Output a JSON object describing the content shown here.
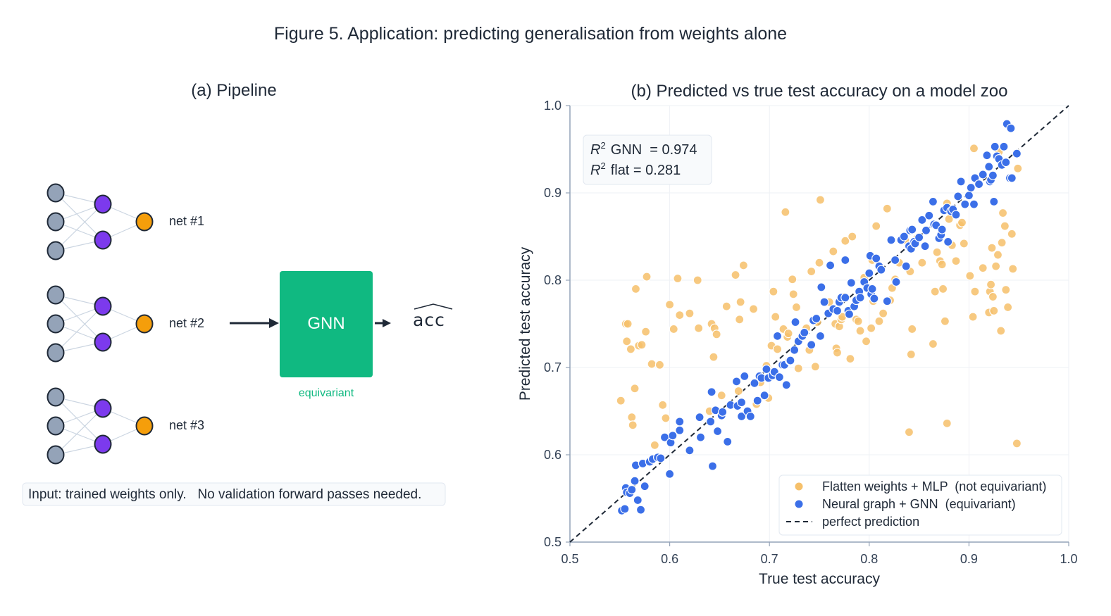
{
  "suptitle": "Figure 5. Application: predicting generalisation from weights alone",
  "panel_a": {
    "title": "(a) Pipeline",
    "nets": [
      "net #1",
      "net #2",
      "net #3"
    ],
    "gnn_label": "GNN",
    "gnn_caption": "equivariant",
    "output_label": "acc",
    "footnote": "Input: trained weights only.   No validation forward passes needed.",
    "colors": {
      "input_node": "#94a3b8",
      "hidden_node": "#7c3aed",
      "output_node": "#f59e0b",
      "gnn_box": "#10b981",
      "edge": "#cbd5e1"
    }
  },
  "chart_data": {
    "type": "scatter",
    "title": "(b) Predicted vs true test accuracy on a model zoo",
    "xlabel": "True test accuracy",
    "ylabel": "Predicted test accuracy",
    "xlim": [
      0.5,
      1.0
    ],
    "ylim": [
      0.5,
      1.0
    ],
    "xticks": [
      "0.5",
      "0.6",
      "0.7",
      "0.8",
      "0.9",
      "1.0"
    ],
    "yticks": [
      "0.5",
      "0.6",
      "0.7",
      "0.8",
      "0.9",
      "1.0"
    ],
    "grid": true,
    "legend_position": "lower-right",
    "annotation_lines": [
      {
        "sym": "R",
        "sup": "2",
        "text": "GNN  = 0.974"
      },
      {
        "sym": "R",
        "sup": "2",
        "text": "flat = 0.281"
      }
    ],
    "series": [
      {
        "name": "Flatten weights + MLP  (not equivariant)",
        "color": "#f6c06a",
        "points": [
          [
            0.551,
            0.662
          ],
          [
            0.556,
            0.75
          ],
          [
            0.557,
            0.73
          ],
          [
            0.558,
            0.75
          ],
          [
            0.561,
            0.721
          ],
          [
            0.562,
            0.643
          ],
          [
            0.563,
            0.634
          ],
          [
            0.565,
            0.676
          ],
          [
            0.566,
            0.79
          ],
          [
            0.569,
            0.725
          ],
          [
            0.572,
            0.726
          ],
          [
            0.576,
            0.741
          ],
          [
            0.577,
            0.804
          ],
          [
            0.582,
            0.704
          ],
          [
            0.585,
            0.611
          ],
          [
            0.59,
            0.703
          ],
          [
            0.593,
            0.657
          ],
          [
            0.596,
            0.642
          ],
          [
            0.6,
            0.772
          ],
          [
            0.604,
            0.744
          ],
          [
            0.608,
            0.802
          ],
          [
            0.61,
            0.76
          ],
          [
            0.62,
            0.762
          ],
          [
            0.628,
            0.8
          ],
          [
            0.629,
            0.745
          ],
          [
            0.64,
            0.65
          ],
          [
            0.642,
            0.75
          ],
          [
            0.644,
            0.712
          ],
          [
            0.645,
            0.745
          ],
          [
            0.647,
            0.738
          ],
          [
            0.652,
            0.668
          ],
          [
            0.657,
            0.77
          ],
          [
            0.666,
            0.806
          ],
          [
            0.669,
            0.673
          ],
          [
            0.67,
            0.755
          ],
          [
            0.671,
            0.775
          ],
          [
            0.674,
            0.817
          ],
          [
            0.684,
            0.767
          ],
          [
            0.687,
            0.658
          ],
          [
            0.691,
            0.683
          ],
          [
            0.697,
            0.702
          ],
          [
            0.699,
            0.665
          ],
          [
            0.702,
            0.725
          ],
          [
            0.704,
            0.787
          ],
          [
            0.706,
            0.758
          ],
          [
            0.708,
            0.721
          ],
          [
            0.714,
            0.744
          ],
          [
            0.716,
            0.878
          ],
          [
            0.718,
            0.735
          ],
          [
            0.719,
            0.739
          ],
          [
            0.723,
            0.801
          ],
          [
            0.724,
            0.784
          ],
          [
            0.727,
            0.769
          ],
          [
            0.729,
            0.699
          ],
          [
            0.737,
            0.745
          ],
          [
            0.74,
            0.72
          ],
          [
            0.742,
            0.81
          ],
          [
            0.746,
            0.701
          ],
          [
            0.748,
            0.752
          ],
          [
            0.75,
            0.82
          ],
          [
            0.751,
            0.892
          ],
          [
            0.76,
            0.775
          ],
          [
            0.764,
            0.833
          ],
          [
            0.766,
            0.75
          ],
          [
            0.767,
            0.722
          ],
          [
            0.768,
            0.717
          ],
          [
            0.77,
            0.747
          ],
          [
            0.772,
            0.755
          ],
          [
            0.773,
            0.758
          ],
          [
            0.775,
            0.781
          ],
          [
            0.776,
            0.845
          ],
          [
            0.781,
            0.71
          ],
          [
            0.783,
            0.85
          ],
          [
            0.787,
            0.755
          ],
          [
            0.789,
            0.753
          ],
          [
            0.791,
            0.742
          ],
          [
            0.795,
            0.803
          ],
          [
            0.797,
            0.73
          ],
          [
            0.802,
            0.745
          ],
          [
            0.803,
            0.823
          ],
          [
            0.804,
            0.776
          ],
          [
            0.807,
            0.862
          ],
          [
            0.81,
            0.753
          ],
          [
            0.814,
            0.762
          ],
          [
            0.818,
            0.882
          ],
          [
            0.821,
            0.777
          ],
          [
            0.823,
            0.791
          ],
          [
            0.826,
            0.801
          ],
          [
            0.83,
            0.82
          ],
          [
            0.836,
            0.846
          ],
          [
            0.84,
            0.626
          ],
          [
            0.841,
            0.81
          ],
          [
            0.842,
            0.715
          ],
          [
            0.843,
            0.744
          ],
          [
            0.848,
            0.848
          ],
          [
            0.853,
            0.82
          ],
          [
            0.864,
            0.727
          ],
          [
            0.866,
            0.787
          ],
          [
            0.868,
            0.832
          ],
          [
            0.871,
            0.822
          ],
          [
            0.873,
            0.818
          ],
          [
            0.874,
            0.79
          ],
          [
            0.876,
            0.753
          ],
          [
            0.878,
            0.636
          ],
          [
            0.878,
            0.888
          ],
          [
            0.88,
            0.87
          ],
          [
            0.883,
            0.84
          ],
          [
            0.887,
            0.822
          ],
          [
            0.891,
            0.863
          ],
          [
            0.893,
            0.866
          ],
          [
            0.895,
            0.842
          ],
          [
            0.901,
            0.805
          ],
          [
            0.904,
            0.758
          ],
          [
            0.905,
            0.951
          ],
          [
            0.906,
            0.787
          ],
          [
            0.914,
            0.814
          ],
          [
            0.92,
            0.763
          ],
          [
            0.921,
            0.787
          ],
          [
            0.922,
            0.795
          ],
          [
            0.923,
            0.837
          ],
          [
            0.924,
            0.781
          ],
          [
            0.925,
            0.765
          ],
          [
            0.927,
            0.816
          ],
          [
            0.929,
            0.829
          ],
          [
            0.93,
            0.947
          ],
          [
            0.932,
            0.742
          ],
          [
            0.933,
            0.843
          ],
          [
            0.934,
            0.877
          ],
          [
            0.936,
            0.862
          ],
          [
            0.937,
            0.789
          ],
          [
            0.939,
            0.769
          ],
          [
            0.943,
            0.853
          ],
          [
            0.944,
            0.813
          ],
          [
            0.948,
            0.613
          ],
          [
            0.949,
            0.928
          ]
        ]
      },
      {
        "name": "Neural graph + GNN  (equivariant)",
        "color": "#3b6fe8",
        "points": [
          [
            0.552,
            0.536
          ],
          [
            0.555,
            0.538
          ],
          [
            0.556,
            0.562
          ],
          [
            0.557,
            0.557
          ],
          [
            0.56,
            0.556
          ],
          [
            0.562,
            0.56
          ],
          [
            0.565,
            0.57
          ],
          [
            0.566,
            0.588
          ],
          [
            0.568,
            0.548
          ],
          [
            0.571,
            0.537
          ],
          [
            0.573,
            0.59
          ],
          [
            0.575,
            0.564
          ],
          [
            0.58,
            0.592
          ],
          [
            0.583,
            0.595
          ],
          [
            0.588,
            0.597
          ],
          [
            0.591,
            0.596
          ],
          [
            0.595,
            0.62
          ],
          [
            0.6,
            0.578
          ],
          [
            0.601,
            0.614
          ],
          [
            0.603,
            0.622
          ],
          [
            0.61,
            0.628
          ],
          [
            0.61,
            0.638
          ],
          [
            0.62,
            0.605
          ],
          [
            0.63,
            0.643
          ],
          [
            0.631,
            0.62
          ],
          [
            0.641,
            0.638
          ],
          [
            0.642,
            0.672
          ],
          [
            0.643,
            0.587
          ],
          [
            0.646,
            0.651
          ],
          [
            0.648,
            0.627
          ],
          [
            0.652,
            0.645
          ],
          [
            0.653,
            0.649
          ],
          [
            0.658,
            0.615
          ],
          [
            0.661,
            0.657
          ],
          [
            0.667,
            0.684
          ],
          [
            0.668,
            0.656
          ],
          [
            0.672,
            0.644
          ],
          [
            0.672,
            0.66
          ],
          [
            0.675,
            0.69
          ],
          [
            0.678,
            0.65
          ],
          [
            0.681,
            0.644
          ],
          [
            0.685,
            0.682
          ],
          [
            0.688,
            0.662
          ],
          [
            0.69,
            0.69
          ],
          [
            0.692,
            0.688
          ],
          [
            0.695,
            0.668
          ],
          [
            0.697,
            0.698
          ],
          [
            0.699,
            0.688
          ],
          [
            0.703,
            0.691
          ],
          [
            0.705,
            0.695
          ],
          [
            0.708,
            0.736
          ],
          [
            0.71,
            0.689
          ],
          [
            0.713,
            0.703
          ],
          [
            0.715,
            0.703
          ],
          [
            0.717,
            0.68
          ],
          [
            0.72,
            0.708
          ],
          [
            0.721,
            0.708
          ],
          [
            0.725,
            0.72
          ],
          [
            0.726,
            0.752
          ],
          [
            0.729,
            0.73
          ],
          [
            0.733,
            0.736
          ],
          [
            0.735,
            0.74
          ],
          [
            0.742,
            0.726
          ],
          [
            0.744,
            0.754
          ],
          [
            0.747,
            0.756
          ],
          [
            0.751,
            0.736
          ],
          [
            0.752,
            0.792
          ],
          [
            0.755,
            0.775
          ],
          [
            0.759,
            0.762
          ],
          [
            0.761,
            0.817
          ],
          [
            0.764,
            0.767
          ],
          [
            0.768,
            0.765
          ],
          [
            0.77,
            0.775
          ],
          [
            0.772,
            0.78
          ],
          [
            0.776,
            0.78
          ],
          [
            0.776,
            0.823
          ],
          [
            0.779,
            0.765
          ],
          [
            0.78,
            0.761
          ],
          [
            0.782,
            0.797
          ],
          [
            0.785,
            0.77
          ],
          [
            0.787,
            0.777
          ],
          [
            0.79,
            0.787
          ],
          [
            0.791,
            0.78
          ],
          [
            0.795,
            0.798
          ],
          [
            0.798,
            0.791
          ],
          [
            0.8,
            0.808
          ],
          [
            0.801,
            0.828
          ],
          [
            0.802,
            0.784
          ],
          [
            0.803,
            0.79
          ],
          [
            0.805,
            0.779
          ],
          [
            0.807,
            0.825
          ],
          [
            0.81,
            0.816
          ],
          [
            0.812,
            0.812
          ],
          [
            0.818,
            0.776
          ],
          [
            0.822,
            0.846
          ],
          [
            0.826,
            0.823
          ],
          [
            0.827,
            0.798
          ],
          [
            0.832,
            0.846
          ],
          [
            0.835,
            0.85
          ],
          [
            0.837,
            0.816
          ],
          [
            0.84,
            0.839
          ],
          [
            0.841,
            0.857
          ],
          [
            0.842,
            0.836
          ],
          [
            0.843,
            0.858
          ],
          [
            0.845,
            0.844
          ],
          [
            0.846,
            0.842
          ],
          [
            0.85,
            0.849
          ],
          [
            0.853,
            0.869
          ],
          [
            0.856,
            0.839
          ],
          [
            0.857,
            0.857
          ],
          [
            0.86,
            0.874
          ],
          [
            0.864,
            0.89
          ],
          [
            0.865,
            0.864
          ],
          [
            0.867,
            0.863
          ],
          [
            0.87,
            0.848
          ],
          [
            0.872,
            0.852
          ],
          [
            0.873,
            0.858
          ],
          [
            0.875,
            0.88
          ],
          [
            0.878,
            0.883
          ],
          [
            0.879,
            0.844
          ],
          [
            0.882,
            0.879
          ],
          [
            0.884,
            0.881
          ],
          [
            0.887,
            0.875
          ],
          [
            0.889,
            0.896
          ],
          [
            0.892,
            0.913
          ],
          [
            0.896,
            0.887
          ],
          [
            0.9,
            0.897
          ],
          [
            0.902,
            0.906
          ],
          [
            0.905,
            0.887
          ],
          [
            0.906,
            0.917
          ],
          [
            0.91,
            0.91
          ],
          [
            0.914,
            0.921
          ],
          [
            0.918,
            0.943
          ],
          [
            0.92,
            0.93
          ],
          [
            0.921,
            0.913
          ],
          [
            0.922,
            0.915
          ],
          [
            0.924,
            0.92
          ],
          [
            0.925,
            0.89
          ],
          [
            0.926,
            0.953
          ],
          [
            0.928,
            0.942
          ],
          [
            0.93,
            0.939
          ],
          [
            0.933,
            0.932
          ],
          [
            0.935,
            0.953
          ],
          [
            0.937,
            0.935
          ],
          [
            0.938,
            0.979
          ],
          [
            0.941,
            0.917
          ],
          [
            0.942,
            0.974
          ],
          [
            0.943,
            0.917
          ],
          [
            0.948,
            0.945
          ]
        ]
      }
    ],
    "reference_line": {
      "name": "perfect prediction",
      "x": [
        0.5,
        1.0
      ],
      "y": [
        0.5,
        1.0
      ],
      "color": "#1f2937"
    }
  }
}
